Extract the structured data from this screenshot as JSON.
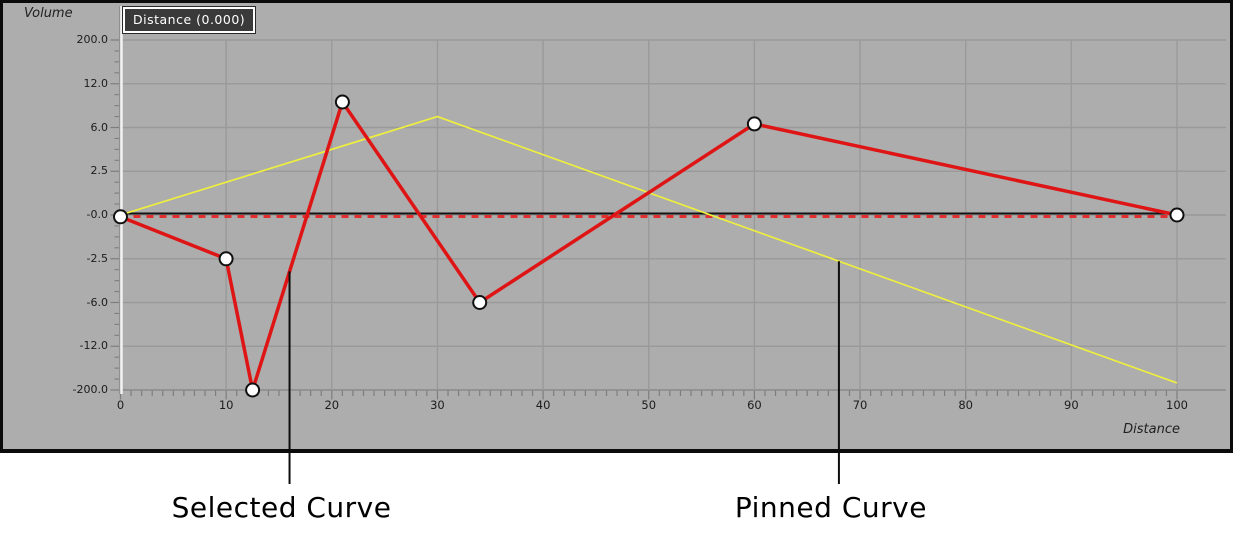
{
  "panel": {
    "y_axis_title": "Volume",
    "x_axis_title": "Distance",
    "tooltip": "Distance (0.000)"
  },
  "colors": {
    "panel_bg": "#adadad",
    "grid": "#9a9a9a",
    "axis_bottom": "#8d8d8d",
    "tick": "#7d7d7d",
    "axis_line_light": "#f2f2f2",
    "axis_line_dark": "#909090",
    "zero_line": "#141414",
    "zero_dash": "#e12f2f",
    "selected_curve": "#df1414",
    "pinned_curve": "#efef3e",
    "marker_fill": "#ffffff",
    "marker_stroke": "#101010",
    "callout_line": "#0d0d0d",
    "tooltip_bg": "#3a3a3a",
    "tooltip_border": "#ffffff",
    "tooltip_text": "#ffffff"
  },
  "chart_data": {
    "type": "line",
    "title": "",
    "xlabel": "Distance",
    "ylabel": "Volume",
    "x_ticks": [
      0,
      10,
      20,
      30,
      40,
      50,
      60,
      70,
      80,
      90,
      100
    ],
    "xlim": [
      0,
      100
    ],
    "y_tick_labels": [
      "200.0",
      "12.0",
      "6.0",
      "2.5",
      "-0.0",
      "-2.5",
      "-6.0",
      "-12.0",
      "-200.0"
    ],
    "y_tick_values": [
      200,
      12,
      6,
      2.5,
      0,
      -2.5,
      -6,
      -12,
      -200
    ],
    "y_scale": "non-linear symmetric (ticks equally spaced on screen)",
    "grid": true,
    "zero_line": {
      "value": 0,
      "style": "black solid overlaid with red dashes"
    },
    "series": [
      {
        "name": "Selected Curve",
        "color_key": "selected_curve",
        "markers": true,
        "points": [
          [
            0,
            -0.1
          ],
          [
            10,
            -2.5
          ],
          [
            12.5,
            -200
          ],
          [
            21,
            9.5
          ],
          [
            34,
            -6
          ],
          [
            60,
            6.5
          ],
          [
            100,
            0
          ]
        ]
      },
      {
        "name": "Pinned Curve",
        "color_key": "pinned_curve",
        "markers": false,
        "points": [
          [
            0,
            0
          ],
          [
            30,
            7.5
          ],
          [
            100,
            -170
          ]
        ]
      }
    ]
  },
  "annotations": [
    {
      "text": "Selected Curve",
      "anchor_x": 16,
      "series": 0
    },
    {
      "text": "Pinned Curve",
      "anchor_x": 68,
      "series": 1
    }
  ]
}
